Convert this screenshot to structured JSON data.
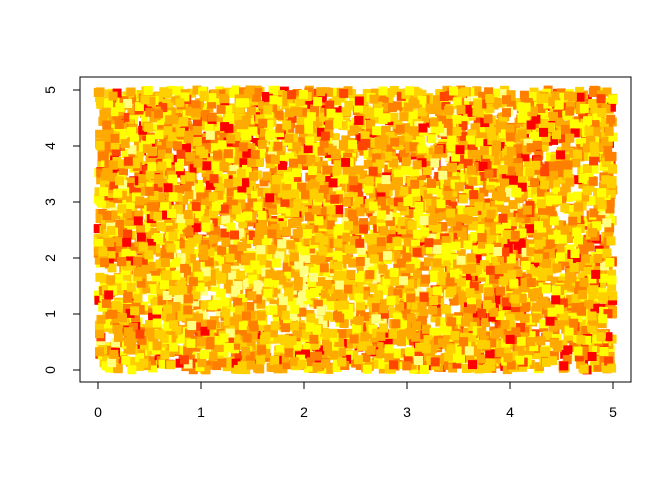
{
  "chart_data": {
    "type": "scatter",
    "title": "",
    "xlabel": "",
    "ylabel": "",
    "xlim": [
      0,
      5
    ],
    "ylim": [
      0,
      5
    ],
    "x_ticks": [
      "0",
      "1",
      "2",
      "3",
      "4",
      "5"
    ],
    "y_ticks": [
      "0",
      "1",
      "2",
      "3",
      "4",
      "5"
    ],
    "grid": false,
    "legend": "none",
    "marker": "filled-square",
    "approx_point_count": 6000,
    "color_scale": "heat (red = high, white/yellow = low)",
    "colors": {
      "red": "#ff0000",
      "orange_red": "#ff4500",
      "orange": "#ff8000",
      "amber": "#ffaa00",
      "yellow_orange": "#ffd000",
      "yellow": "#ffff00",
      "pale_yellow": "#ffff80"
    },
    "color_weights": [
      1,
      6,
      18,
      26,
      22,
      20,
      7
    ]
  }
}
